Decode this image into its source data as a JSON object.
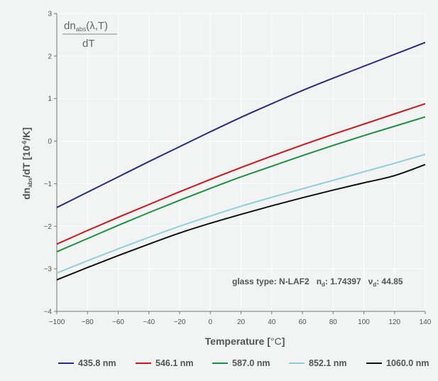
{
  "chart_data": {
    "type": "line",
    "x_label_parts": [
      "Temperature [",
      "°C",
      "]"
    ],
    "y_label_parts": [
      "dn",
      "abs",
      "/dT [10",
      "-6",
      "/K]"
    ],
    "formula_parts": [
      "dn",
      "abs",
      "(λ,T)"
    ],
    "formula_denominator": "dT",
    "xlim": [
      -100,
      140
    ],
    "ylim": [
      -4,
      3
    ],
    "x_ticks": [
      -100,
      -80,
      -60,
      -40,
      -20,
      0,
      20,
      40,
      60,
      80,
      100,
      120,
      140
    ],
    "y_ticks": [
      -4,
      -3,
      -2,
      -1,
      0,
      1,
      2,
      3
    ],
    "x": [
      -100,
      -80,
      -60,
      -40,
      -20,
      0,
      20,
      40,
      60,
      80,
      100,
      120,
      140
    ],
    "series": [
      {
        "name": "435.8 nm",
        "color": "#2a2a84",
        "values": [
          -1.56,
          -1.2,
          -0.84,
          -0.48,
          -0.13,
          0.22,
          0.56,
          0.88,
          1.19,
          1.48,
          1.76,
          2.04,
          2.32
        ]
      },
      {
        "name": "546.1 nm",
        "color": "#d0141c",
        "values": [
          -2.42,
          -2.1,
          -1.79,
          -1.49,
          -1.19,
          -0.9,
          -0.62,
          -0.35,
          -0.09,
          0.16,
          0.4,
          0.64,
          0.88
        ]
      },
      {
        "name": "587.0 nm",
        "color": "#1a9140",
        "values": [
          -2.6,
          -2.29,
          -1.98,
          -1.68,
          -1.39,
          -1.11,
          -0.84,
          -0.59,
          -0.34,
          -0.1,
          0.13,
          0.35,
          0.57
        ]
      },
      {
        "name": "852.1 nm",
        "color": "#8fcfdc",
        "values": [
          -3.1,
          -2.81,
          -2.53,
          -2.26,
          -2.0,
          -1.76,
          -1.53,
          -1.32,
          -1.12,
          -0.92,
          -0.72,
          -0.52,
          -0.31
        ]
      },
      {
        "name": "1060.0 nm",
        "color": "#111111",
        "values": [
          -3.26,
          -2.97,
          -2.69,
          -2.42,
          -2.16,
          -1.93,
          -1.72,
          -1.52,
          -1.33,
          -1.15,
          -0.98,
          -0.81,
          -0.55
        ]
      }
    ],
    "annotation": {
      "glass_prefix": "glass type: N-LAF2",
      "nd_symbol": "n",
      "nd_sub": "d",
      "nd_value": ": 1.74397",
      "vd_symbol": "ν",
      "vd_sub": "d",
      "vd_value": ": 44.85"
    },
    "grid": true,
    "legend_position": "bottom"
  }
}
